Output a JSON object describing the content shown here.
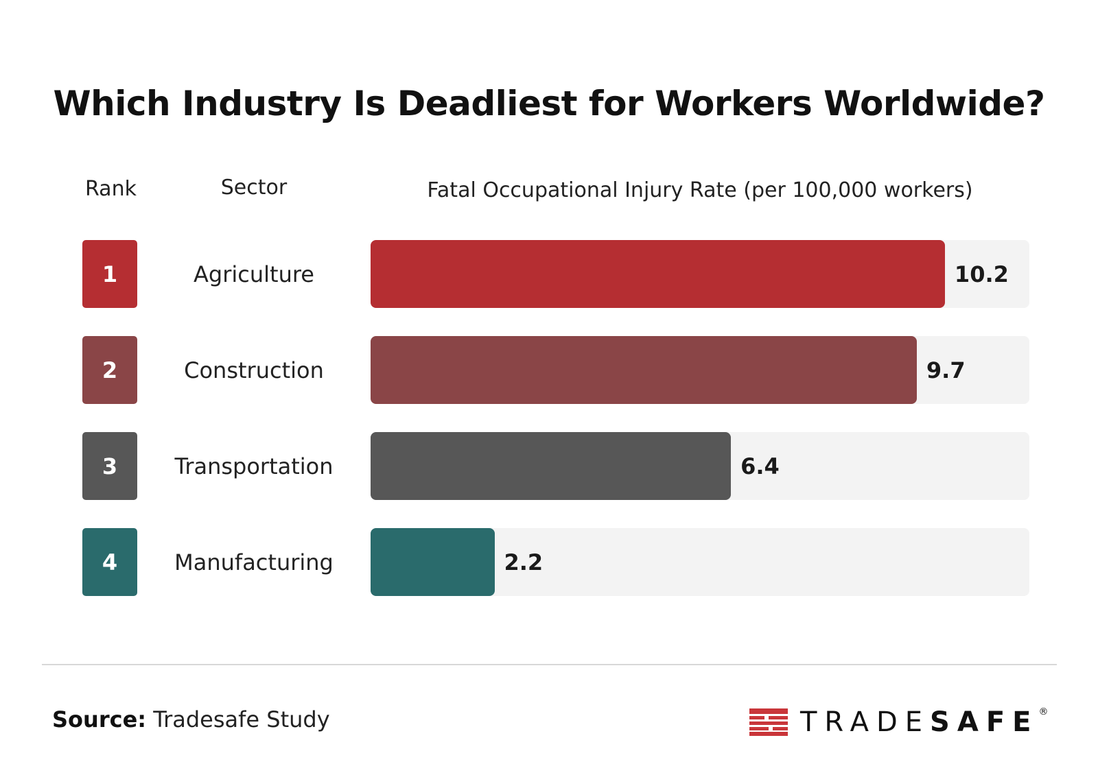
{
  "chart_data": {
    "type": "bar",
    "orientation": "horizontal",
    "title": "Which Industry Is Deadliest for Workers Worldwide?",
    "column_headers": {
      "rank": "Rank",
      "sector": "Sector",
      "value": "Fatal Occupational Injury Rate (per 100,000 workers)"
    },
    "categories": [
      "Agriculture",
      "Construction",
      "Transportation",
      "Manufacturing"
    ],
    "ranks": [
      "1",
      "2",
      "3",
      "4"
    ],
    "values": [
      10.2,
      9.7,
      6.4,
      2.2
    ],
    "value_labels": [
      "10.2",
      "9.7",
      "6.4",
      "2.2"
    ],
    "colors": [
      "#b52e32",
      "#8a4547",
      "#575757",
      "#2a6b6c"
    ],
    "xlim": [
      0,
      11.7
    ],
    "grid": false,
    "track_color": "#f3f3f3"
  },
  "footer": {
    "source_label": "Source:",
    "source_text": "Tradesafe Study",
    "logo_text_light": "TRADE",
    "logo_text_bold": "SAFE",
    "logo_mark": "®",
    "logo_color": "#c9363a"
  }
}
